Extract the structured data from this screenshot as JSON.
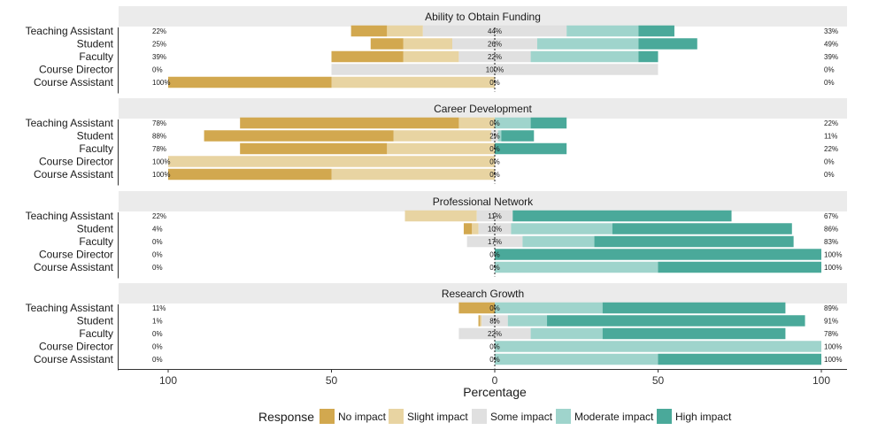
{
  "chart_data": {
    "type": "bar",
    "subtype": "diverging-stacked-bar",
    "xlabel": "Percentage",
    "xlim": [
      -100,
      100
    ],
    "x_ticks": [
      {
        "value": -100,
        "label": "100"
      },
      {
        "value": -50,
        "label": "50"
      },
      {
        "value": 0,
        "label": "0"
      },
      {
        "value": 50,
        "label": "50"
      },
      {
        "value": 100,
        "label": "100"
      }
    ],
    "categories": [
      "No impact",
      "Slight impact",
      "Some impact",
      "Moderate impact",
      "High impact"
    ],
    "colors": {
      "No impact": "#d2a84f",
      "Slight impact": "#e8d4a2",
      "Some impact": "#e0e0e0",
      "Moderate impact": "#9fd4cc",
      "High impact": "#4aa99a"
    },
    "legend": {
      "title": "Response",
      "position": "bottom"
    },
    "panels": [
      {
        "title": "Ability to Obtain Funding",
        "rows": [
          {
            "group": "Teaching Assistant",
            "values": [
              11,
              11,
              44,
              22,
              11
            ],
            "left_pct": "22%",
            "center_pct": "44%",
            "right_pct": "33%"
          },
          {
            "group": "Student",
            "values": [
              10,
              15,
              26,
              31,
              18
            ],
            "left_pct": "25%",
            "center_pct": "26%",
            "right_pct": "49%"
          },
          {
            "group": "Faculty",
            "values": [
              22,
              17,
              22,
              33,
              6
            ],
            "left_pct": "39%",
            "center_pct": "22%",
            "right_pct": "39%"
          },
          {
            "group": "Course Director",
            "values": [
              0,
              0,
              100,
              0,
              0
            ],
            "left_pct": "0%",
            "center_pct": "100%",
            "right_pct": "0%"
          },
          {
            "group": "Course Assistant",
            "values": [
              50,
              50,
              0,
              0,
              0
            ],
            "left_pct": "100%",
            "center_pct": "0%",
            "right_pct": "0%"
          }
        ]
      },
      {
        "title": "Career Development",
        "rows": [
          {
            "group": "Teaching Assistant",
            "values": [
              67,
              11,
              0,
              11,
              11
            ],
            "left_pct": "78%",
            "center_pct": "0%",
            "right_pct": "22%"
          },
          {
            "group": "Student",
            "values": [
              58,
              30,
              2,
              1,
              10
            ],
            "left_pct": "88%",
            "center_pct": "2%",
            "right_pct": "11%"
          },
          {
            "group": "Faculty",
            "values": [
              45,
              33,
              0,
              0,
              22
            ],
            "left_pct": "78%",
            "center_pct": "0%",
            "right_pct": "22%"
          },
          {
            "group": "Course Director",
            "values": [
              0,
              100,
              0,
              0,
              0
            ],
            "left_pct": "100%",
            "center_pct": "0%",
            "right_pct": "0%"
          },
          {
            "group": "Course Assistant",
            "values": [
              50,
              50,
              0,
              0,
              0
            ],
            "left_pct": "100%",
            "center_pct": "0%",
            "right_pct": "0%"
          }
        ]
      },
      {
        "title": "Professional Network",
        "rows": [
          {
            "group": "Teaching Assistant",
            "values": [
              0,
              22,
              11,
              0,
              67
            ],
            "left_pct": "22%",
            "center_pct": "11%",
            "right_pct": "67%"
          },
          {
            "group": "Student",
            "values": [
              2.5,
              2,
              10,
              31,
              55
            ],
            "left_pct": "4%",
            "center_pct": "10%",
            "right_pct": "86%"
          },
          {
            "group": "Faculty",
            "values": [
              0,
              0,
              17,
              22,
              61
            ],
            "left_pct": "0%",
            "center_pct": "17%",
            "right_pct": "83%"
          },
          {
            "group": "Course Director",
            "values": [
              0,
              0,
              0,
              0,
              100
            ],
            "left_pct": "0%",
            "center_pct": "0%",
            "right_pct": "100%"
          },
          {
            "group": "Course Assistant",
            "values": [
              0,
              0,
              0,
              50,
              50
            ],
            "left_pct": "0%",
            "center_pct": "0%",
            "right_pct": "100%"
          }
        ]
      },
      {
        "title": "Research Growth",
        "rows": [
          {
            "group": "Teaching Assistant",
            "values": [
              11,
              0,
              0,
              33,
              56
            ],
            "left_pct": "11%",
            "center_pct": "0%",
            "right_pct": "89%"
          },
          {
            "group": "Student",
            "values": [
              0.5,
              0.5,
              8,
              12,
              79
            ],
            "left_pct": "1%",
            "center_pct": "8%",
            "right_pct": "91%"
          },
          {
            "group": "Faculty",
            "values": [
              0,
              0,
              22,
              22,
              56
            ],
            "left_pct": "0%",
            "center_pct": "22%",
            "right_pct": "78%"
          },
          {
            "group": "Course Director",
            "values": [
              0,
              0,
              0,
              100,
              0
            ],
            "left_pct": "0%",
            "center_pct": "0%",
            "right_pct": "100%"
          },
          {
            "group": "Course Assistant",
            "values": [
              0,
              0,
              0,
              50,
              50
            ],
            "left_pct": "0%",
            "center_pct": "0%",
            "right_pct": "100%"
          }
        ]
      }
    ]
  }
}
